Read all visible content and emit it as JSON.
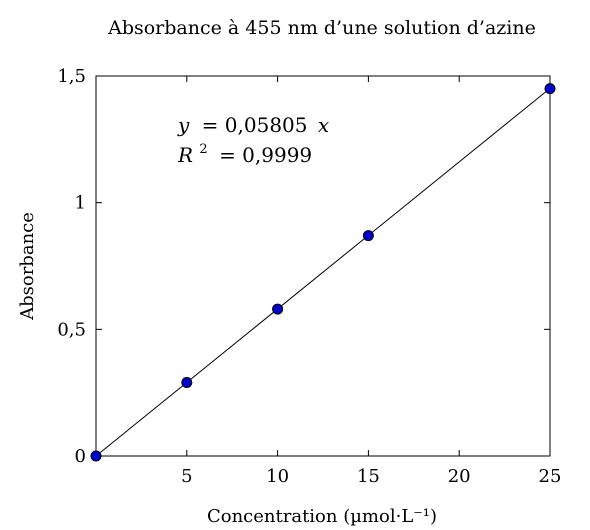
{
  "chart_data": {
    "type": "scatter",
    "title": "Absorbance à 455 nm d’une solution d’azine",
    "xlabel": "Concentration (µmol·L⁻¹)",
    "ylabel": "Absorbance",
    "xlim": [
      0,
      25
    ],
    "ylim": [
      0,
      1.5
    ],
    "x_ticks": [
      5,
      10,
      15,
      20,
      25
    ],
    "x_tick_labels": [
      "5",
      "10",
      "15",
      "20",
      "25"
    ],
    "y_ticks": [
      0,
      0.5,
      1,
      1.5
    ],
    "y_tick_labels": [
      "0",
      "0,5",
      "1",
      "1,5"
    ],
    "grid": false,
    "series": [
      {
        "x": [
          0,
          5,
          10,
          15,
          25
        ],
        "y": [
          0,
          0.29,
          0.58,
          0.87,
          1.45
        ],
        "marker_color": "#0000cc",
        "marker_edge": "#000000"
      }
    ],
    "fit": {
      "slope": 0.05805,
      "intercept": 0,
      "x_range": [
        0,
        25
      ],
      "line_color": "#000000",
      "equation_lhs": "y",
      "equation_rhs": "= 0,05805",
      "equation_var": "x",
      "r2_lhs": "R",
      "r2_sup": "2",
      "r2_rhs": "= 0,9999"
    }
  }
}
